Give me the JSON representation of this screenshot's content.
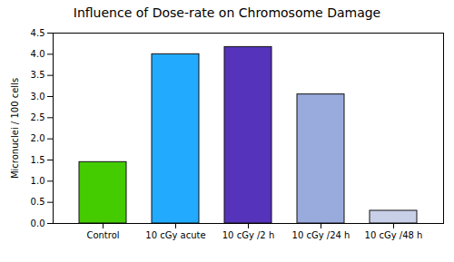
{
  "chart_data": {
    "type": "bar",
    "title": "Influence of Dose-rate on Chromosome Damage",
    "ylabel": "Micronuclei / 100 cells",
    "categories": [
      "Control",
      "10 cGy acute",
      "10 cGy /2 h",
      "10 cGy /24 h",
      "10 cGy /48 h"
    ],
    "values": [
      1.45,
      4.0,
      4.17,
      3.05,
      0.3
    ],
    "colors": [
      "#44cc00",
      "#22aaff",
      "#5533bb",
      "#99aadd",
      "#c8d0e8"
    ],
    "ylim": [
      0,
      4.5
    ],
    "yticks": [
      {
        "value": 0,
        "label": "0.0"
      },
      0.5,
      {
        "value": 1,
        "label": "1.0"
      },
      1.5,
      {
        "value": 2,
        "label": "2.0"
      },
      2.5,
      {
        "value": 3,
        "label": "3.0"
      },
      3.5,
      {
        "value": 4,
        "label": "4.0"
      },
      4.5
    ],
    "grid": false
  }
}
